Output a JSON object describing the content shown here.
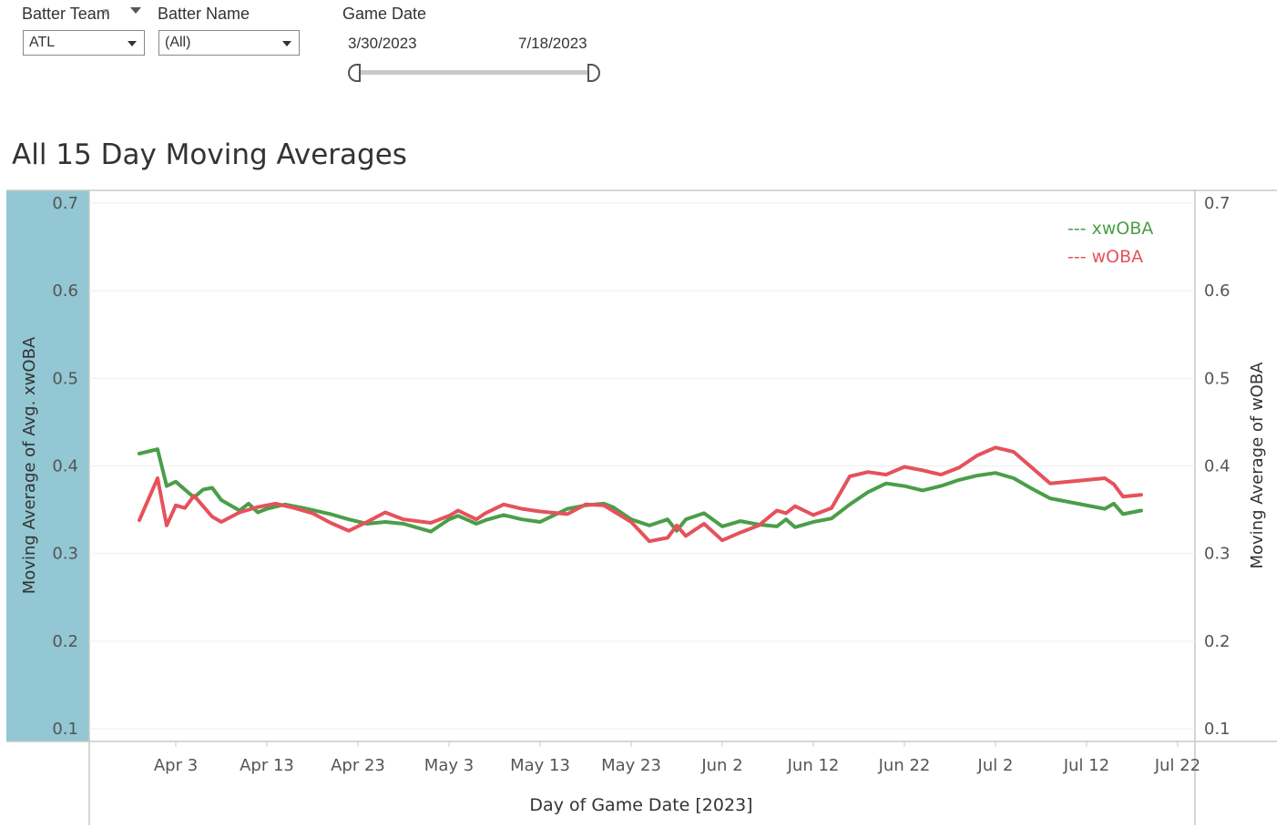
{
  "filters": {
    "batter_team": {
      "label": "Batter Team",
      "value": "ATL"
    },
    "batter_name": {
      "label": "Batter Name",
      "value": "(All)"
    },
    "game_date": {
      "label": "Game Date",
      "start": "3/30/2023",
      "end": "7/18/2023"
    }
  },
  "icons": {
    "filter": "funnel-icon",
    "sort": "caret-down-icon",
    "dropdown": "chevron-down-icon"
  },
  "chart_data": {
    "type": "line",
    "title": "All 15 Day Moving Averages",
    "xlabel": "Day of Game Date [2023]",
    "ylabel_left": "Moving Average of Avg. xwOBA",
    "ylabel_right": "Moving Average of wOBA",
    "ylim": [
      0.1,
      0.7
    ],
    "y_ticks": [
      "0.7",
      "0.6",
      "0.5",
      "0.4",
      "0.3",
      "0.2",
      "0.1"
    ],
    "x_ticks": [
      "Apr 3",
      "Apr 13",
      "Apr 23",
      "May 3",
      "May 13",
      "May 23",
      "Jun 2",
      "Jun 12",
      "Jun 22",
      "Jul 2",
      "Jul 12",
      "Jul 22"
    ],
    "legend": [
      "--- xwOBA",
      "--- wOBA"
    ],
    "legend_position": "top-right",
    "colors": {
      "xwOBA": "#4a9e48",
      "wOBA": "#e5525c",
      "left_axis_band": "#92c7d3"
    },
    "series": [
      {
        "name": "xwOBA",
        "x": [
          "2023-03-30",
          "2023-04-01",
          "2023-04-02",
          "2023-04-03",
          "2023-04-05",
          "2023-04-06",
          "2023-04-07",
          "2023-04-08",
          "2023-04-10",
          "2023-04-11",
          "2023-04-12",
          "2023-04-13",
          "2023-04-15",
          "2023-04-17",
          "2023-04-20",
          "2023-04-22",
          "2023-04-24",
          "2023-04-26",
          "2023-04-28",
          "2023-05-01",
          "2023-05-03",
          "2023-05-04",
          "2023-05-06",
          "2023-05-07",
          "2023-05-09",
          "2023-05-11",
          "2023-05-13",
          "2023-05-14",
          "2023-05-16",
          "2023-05-18",
          "2023-05-20",
          "2023-05-21",
          "2023-05-23",
          "2023-05-25",
          "2023-05-27",
          "2023-05-28",
          "2023-05-29",
          "2023-05-31",
          "2023-06-02",
          "2023-06-04",
          "2023-06-06",
          "2023-06-08",
          "2023-06-09",
          "2023-06-10",
          "2023-06-12",
          "2023-06-14",
          "2023-06-16",
          "2023-06-18",
          "2023-06-20",
          "2023-06-22",
          "2023-06-24",
          "2023-06-26",
          "2023-06-28",
          "2023-06-30",
          "2023-07-02",
          "2023-07-04",
          "2023-07-06",
          "2023-07-08",
          "2023-07-14",
          "2023-07-15",
          "2023-07-16",
          "2023-07-18"
        ],
        "values": [
          0.414,
          0.419,
          0.377,
          0.382,
          0.364,
          0.373,
          0.375,
          0.361,
          0.349,
          0.357,
          0.347,
          0.351,
          0.356,
          0.352,
          0.345,
          0.339,
          0.334,
          0.336,
          0.334,
          0.325,
          0.339,
          0.343,
          0.334,
          0.338,
          0.344,
          0.339,
          0.336,
          0.341,
          0.351,
          0.355,
          0.357,
          0.353,
          0.339,
          0.332,
          0.339,
          0.326,
          0.339,
          0.346,
          0.331,
          0.337,
          0.333,
          0.331,
          0.339,
          0.33,
          0.336,
          0.34,
          0.356,
          0.37,
          0.38,
          0.377,
          0.372,
          0.377,
          0.384,
          0.389,
          0.392,
          0.386,
          0.374,
          0.363,
          0.351,
          0.357,
          0.345,
          0.349
        ]
      },
      {
        "name": "wOBA",
        "x": [
          "2023-03-30",
          "2023-04-01",
          "2023-04-02",
          "2023-04-03",
          "2023-04-04",
          "2023-04-05",
          "2023-04-06",
          "2023-04-07",
          "2023-04-08",
          "2023-04-10",
          "2023-04-12",
          "2023-04-14",
          "2023-04-16",
          "2023-04-18",
          "2023-04-20",
          "2023-04-22",
          "2023-04-24",
          "2023-04-26",
          "2023-04-28",
          "2023-05-01",
          "2023-05-03",
          "2023-05-04",
          "2023-05-06",
          "2023-05-07",
          "2023-05-09",
          "2023-05-11",
          "2023-05-13",
          "2023-05-14",
          "2023-05-16",
          "2023-05-18",
          "2023-05-20",
          "2023-05-23",
          "2023-05-25",
          "2023-05-27",
          "2023-05-28",
          "2023-05-29",
          "2023-05-31",
          "2023-06-02",
          "2023-06-04",
          "2023-06-06",
          "2023-06-08",
          "2023-06-09",
          "2023-06-10",
          "2023-06-12",
          "2023-06-14",
          "2023-06-16",
          "2023-06-18",
          "2023-06-20",
          "2023-06-22",
          "2023-06-24",
          "2023-06-26",
          "2023-06-28",
          "2023-06-30",
          "2023-07-02",
          "2023-07-04",
          "2023-07-06",
          "2023-07-08",
          "2023-07-14",
          "2023-07-15",
          "2023-07-16",
          "2023-07-18"
        ],
        "values": [
          0.338,
          0.386,
          0.332,
          0.355,
          0.352,
          0.366,
          0.354,
          0.342,
          0.336,
          0.347,
          0.353,
          0.357,
          0.352,
          0.346,
          0.335,
          0.326,
          0.336,
          0.347,
          0.339,
          0.335,
          0.343,
          0.349,
          0.339,
          0.346,
          0.356,
          0.351,
          0.348,
          0.347,
          0.345,
          0.356,
          0.355,
          0.336,
          0.314,
          0.318,
          0.332,
          0.32,
          0.334,
          0.315,
          0.324,
          0.332,
          0.349,
          0.346,
          0.354,
          0.344,
          0.352,
          0.388,
          0.393,
          0.39,
          0.399,
          0.395,
          0.39,
          0.398,
          0.412,
          0.421,
          0.416,
          0.398,
          0.38,
          0.386,
          0.379,
          0.365,
          0.367
        ]
      }
    ]
  }
}
